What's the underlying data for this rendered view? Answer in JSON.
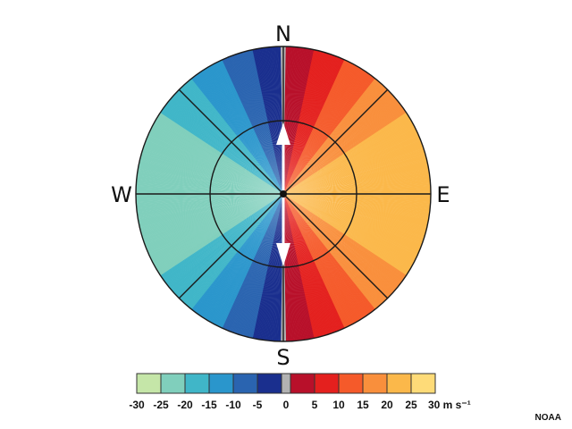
{
  "directions": {
    "north": "N",
    "south": "S",
    "east": "E",
    "west": "W"
  },
  "colorbar": {
    "bins": [
      {
        "from": -30,
        "to": -25,
        "color": "#c5e6a8"
      },
      {
        "from": -25,
        "to": -20,
        "color": "#80cfbc"
      },
      {
        "from": -20,
        "to": -15,
        "color": "#40b6c8"
      },
      {
        "from": -15,
        "to": -10,
        "color": "#2a96cc"
      },
      {
        "from": -10,
        "to": -5,
        "color": "#2a64b0"
      },
      {
        "from": -5,
        "to": 0,
        "color": "#1a2f8e"
      },
      {
        "from": 0,
        "to": 0,
        "color": "#b2b2b2"
      },
      {
        "from": 0,
        "to": 5,
        "color": "#b8102a"
      },
      {
        "from": 5,
        "to": 10,
        "color": "#e4201e"
      },
      {
        "from": 10,
        "to": 15,
        "color": "#f55a2a"
      },
      {
        "from": 15,
        "to": 20,
        "color": "#f98f3c"
      },
      {
        "from": 20,
        "to": 25,
        "color": "#fbb84a"
      },
      {
        "from": 25,
        "to": 30,
        "color": "#fedb78"
      }
    ],
    "tick_labels": [
      "-30",
      "-25",
      "-20",
      "-15",
      "-10",
      "-5",
      "0",
      "5",
      "10",
      "15",
      "20",
      "25",
      "30 m s⁻¹"
    ]
  },
  "max_wind_speed": 24,
  "credit": "NOAA"
}
